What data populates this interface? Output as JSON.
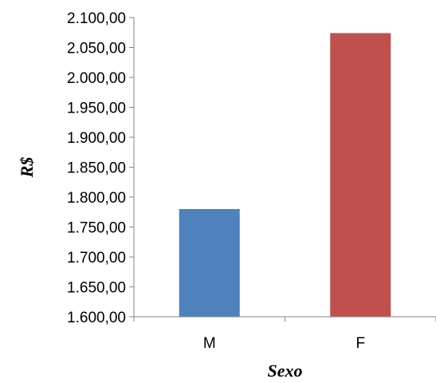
{
  "chart_data": {
    "type": "bar",
    "categories": [
      "M",
      "F"
    ],
    "values": [
      1780.0,
      2074.0
    ],
    "colors": [
      "#4f81bd",
      "#c0504d"
    ],
    "xlabel": "Sexo",
    "ylabel": "R$",
    "ylim": [
      1600,
      2100
    ],
    "yticks": [
      "1.600,00",
      "1.650,00",
      "1.700,00",
      "1.750,00",
      "1.800,00",
      "1.850,00",
      "1.900,00",
      "1.950,00",
      "2.000,00",
      "2.050,00",
      "2.100,00"
    ],
    "grid": false,
    "legend": "none"
  }
}
